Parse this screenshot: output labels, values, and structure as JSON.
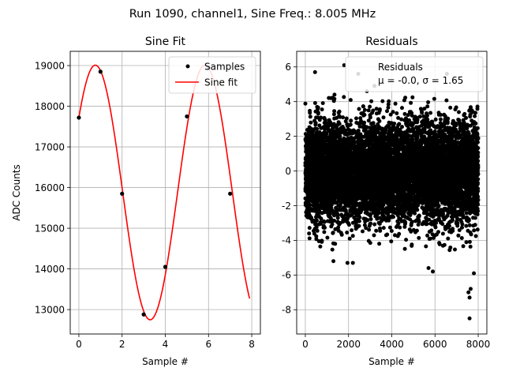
{
  "figure": {
    "suptitle": "Run 1090, channel1, Sine Freq.: 8.005 MHz"
  },
  "chart_data": [
    {
      "type": "line",
      "title": "Sine Fit",
      "xlabel": "Sample #",
      "ylabel": "ADC Counts",
      "xlim": [
        -0.4,
        8.4
      ],
      "ylim": [
        12400,
        19350
      ],
      "xticks": [
        0,
        2,
        4,
        6,
        8
      ],
      "yticks": [
        13000,
        14000,
        15000,
        16000,
        17000,
        18000,
        19000
      ],
      "grid": true,
      "legend": {
        "position": "top-right",
        "entries": [
          "Samples",
          "Sine fit"
        ]
      },
      "series": [
        {
          "name": "Samples",
          "style": "points",
          "color": "#000000",
          "x": [
            0,
            1,
            2,
            3,
            4,
            5,
            6,
            7
          ],
          "y": [
            17720,
            18850,
            15850,
            12880,
            14050,
            17750,
            18950,
            15850
          ]
        },
        {
          "name": "Sine fit",
          "style": "line",
          "color": "#ff0000",
          "model": {
            "offset": 15880,
            "amplitude": 3130,
            "period": 5.075,
            "phase_at_zero": 17720,
            "phase_rising": true
          },
          "x_range": [
            0,
            7.9
          ]
        }
      ]
    },
    {
      "type": "scatter",
      "title": "Residuals",
      "xlabel": "Sample #",
      "xlim": [
        -400,
        8400
      ],
      "ylim": [
        -9.4,
        6.9
      ],
      "xticks": [
        0,
        2000,
        4000,
        6000,
        8000
      ],
      "yticks": [
        -8,
        -6,
        -4,
        -2,
        0,
        2,
        4,
        6
      ],
      "grid": true,
      "legend": {
        "position": "top-right",
        "entries": [
          "Residuals",
          "μ = -0.0, σ = 1.65"
        ]
      },
      "stats": {
        "mu": "-0.0",
        "sigma": "1.65"
      },
      "series": [
        {
          "name": "Residuals",
          "style": "points",
          "color": "#000000",
          "n_points": 8000,
          "x_range": [
            0,
            7999
          ],
          "core_sd": 1.4,
          "outliers": [
            {
              "x": 450,
              "y": 5.7
            },
            {
              "x": 1800,
              "y": 6.1
            },
            {
              "x": 2450,
              "y": 5.6
            },
            {
              "x": 3200,
              "y": 4.9
            },
            {
              "x": 6550,
              "y": 5.6
            },
            {
              "x": 1350,
              "y": 4.4
            },
            {
              "x": 2850,
              "y": 4.6
            },
            {
              "x": 7600,
              "y": -8.5
            },
            {
              "x": 7600,
              "y": -7.3
            },
            {
              "x": 7550,
              "y": -7.0
            },
            {
              "x": 7650,
              "y": -6.8
            },
            {
              "x": 5900,
              "y": -5.8
            },
            {
              "x": 5700,
              "y": -5.6
            },
            {
              "x": 1300,
              "y": -5.2
            },
            {
              "x": 1950,
              "y": -5.3
            },
            {
              "x": 7800,
              "y": -5.9
            },
            {
              "x": 2200,
              "y": -5.3
            }
          ]
        }
      ]
    }
  ]
}
